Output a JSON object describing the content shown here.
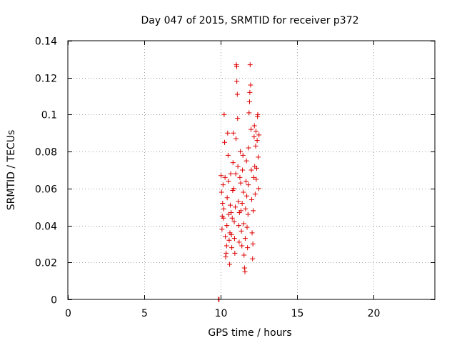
{
  "chart_data": {
    "type": "scatter",
    "title": "Day 047 of 2015, SRMTID for receiver p372",
    "xlabel": "GPS time / hours",
    "ylabel": "SRMTID / TECUs",
    "xlim": [
      0,
      24
    ],
    "ylim": [
      0,
      0.14
    ],
    "xticks": [
      0,
      5,
      10,
      15,
      20
    ],
    "xtick_labels": [
      "0",
      "5",
      "10",
      "15",
      "20"
    ],
    "yticks": [
      0,
      0.02,
      0.04,
      0.06,
      0.08,
      0.1,
      0.12,
      0.14
    ],
    "ytick_labels": [
      "0",
      "0.02",
      "0.04",
      "0.06",
      "0.08",
      "0.1",
      "0.12",
      "0.14"
    ],
    "grid": true,
    "marker": "plus",
    "color": "#dd0000",
    "series": [
      {
        "name": "p372",
        "points": [
          [
            9.85,
            0.0
          ],
          [
            9.87,
            0.0
          ],
          [
            9.89,
            0.0
          ],
          [
            10.02,
            0.067
          ],
          [
            10.05,
            0.058
          ],
          [
            10.08,
            0.038
          ],
          [
            10.1,
            0.045
          ],
          [
            10.12,
            0.052
          ],
          [
            10.15,
            0.062
          ],
          [
            10.18,
            0.044
          ],
          [
            10.2,
            0.049
          ],
          [
            10.22,
            0.1
          ],
          [
            10.25,
            0.085
          ],
          [
            10.28,
            0.066
          ],
          [
            10.3,
            0.034
          ],
          [
            10.32,
            0.023
          ],
          [
            10.35,
            0.025
          ],
          [
            10.38,
            0.029
          ],
          [
            10.4,
            0.04
          ],
          [
            10.42,
            0.055
          ],
          [
            10.45,
            0.09
          ],
          [
            10.48,
            0.078
          ],
          [
            10.5,
            0.064
          ],
          [
            10.52,
            0.046
          ],
          [
            10.55,
            0.032
          ],
          [
            10.58,
            0.019
          ],
          [
            10.6,
            0.036
          ],
          [
            10.62,
            0.051
          ],
          [
            10.65,
            0.068
          ],
          [
            10.68,
            0.047
          ],
          [
            10.7,
            0.035
          ],
          [
            10.72,
            0.028
          ],
          [
            10.75,
            0.044
          ],
          [
            10.78,
            0.059
          ],
          [
            10.8,
            0.074
          ],
          [
            10.82,
            0.09
          ],
          [
            10.85,
            0.06
          ],
          [
            10.88,
            0.042
          ],
          [
            10.9,
            0.033
          ],
          [
            10.92,
            0.025
          ],
          [
            10.95,
            0.05
          ],
          [
            10.98,
            0.068
          ],
          [
            11.0,
            0.087
          ],
          [
            11.02,
            0.127
          ],
          [
            11.04,
            0.126
          ],
          [
            11.05,
            0.118
          ],
          [
            11.08,
            0.111
          ],
          [
            11.1,
            0.098
          ],
          [
            11.12,
            0.072
          ],
          [
            11.15,
            0.053
          ],
          [
            11.18,
            0.04
          ],
          [
            11.2,
            0.031
          ],
          [
            11.22,
            0.047
          ],
          [
            11.25,
            0.066
          ],
          [
            11.28,
            0.08
          ],
          [
            11.3,
            0.063
          ],
          [
            11.32,
            0.048
          ],
          [
            11.35,
            0.037
          ],
          [
            11.38,
            0.029
          ],
          [
            11.4,
            0.052
          ],
          [
            11.42,
            0.07
          ],
          [
            11.45,
            0.078
          ],
          [
            11.48,
            0.058
          ],
          [
            11.5,
            0.041
          ],
          [
            11.52,
            0.024
          ],
          [
            11.55,
            0.017
          ],
          [
            11.58,
            0.015
          ],
          [
            11.6,
            0.033
          ],
          [
            11.62,
            0.049
          ],
          [
            11.65,
            0.064
          ],
          [
            11.68,
            0.075
          ],
          [
            11.7,
            0.056
          ],
          [
            11.72,
            0.039
          ],
          [
            11.75,
            0.028
          ],
          [
            11.78,
            0.046
          ],
          [
            11.8,
            0.062
          ],
          [
            11.82,
            0.082
          ],
          [
            11.85,
            0.101
          ],
          [
            11.88,
            0.107
          ],
          [
            11.9,
            0.112
          ],
          [
            11.92,
            0.127
          ],
          [
            11.95,
            0.116
          ],
          [
            11.98,
            0.092
          ],
          [
            12.0,
            0.07
          ],
          [
            12.02,
            0.054
          ],
          [
            12.05,
            0.036
          ],
          [
            12.08,
            0.022
          ],
          [
            12.1,
            0.03
          ],
          [
            12.12,
            0.048
          ],
          [
            12.15,
            0.066
          ],
          [
            12.18,
            0.088
          ],
          [
            12.2,
            0.094
          ],
          [
            12.22,
            0.072
          ],
          [
            12.25,
            0.057
          ],
          [
            12.28,
            0.083
          ],
          [
            12.3,
            0.091
          ],
          [
            12.32,
            0.065
          ],
          [
            12.35,
            0.071
          ],
          [
            12.38,
            0.086
          ],
          [
            12.4,
            0.099
          ],
          [
            12.42,
            0.1
          ],
          [
            12.45,
            0.077
          ],
          [
            12.48,
            0.06
          ],
          [
            12.5,
            0.089
          ]
        ]
      }
    ]
  }
}
